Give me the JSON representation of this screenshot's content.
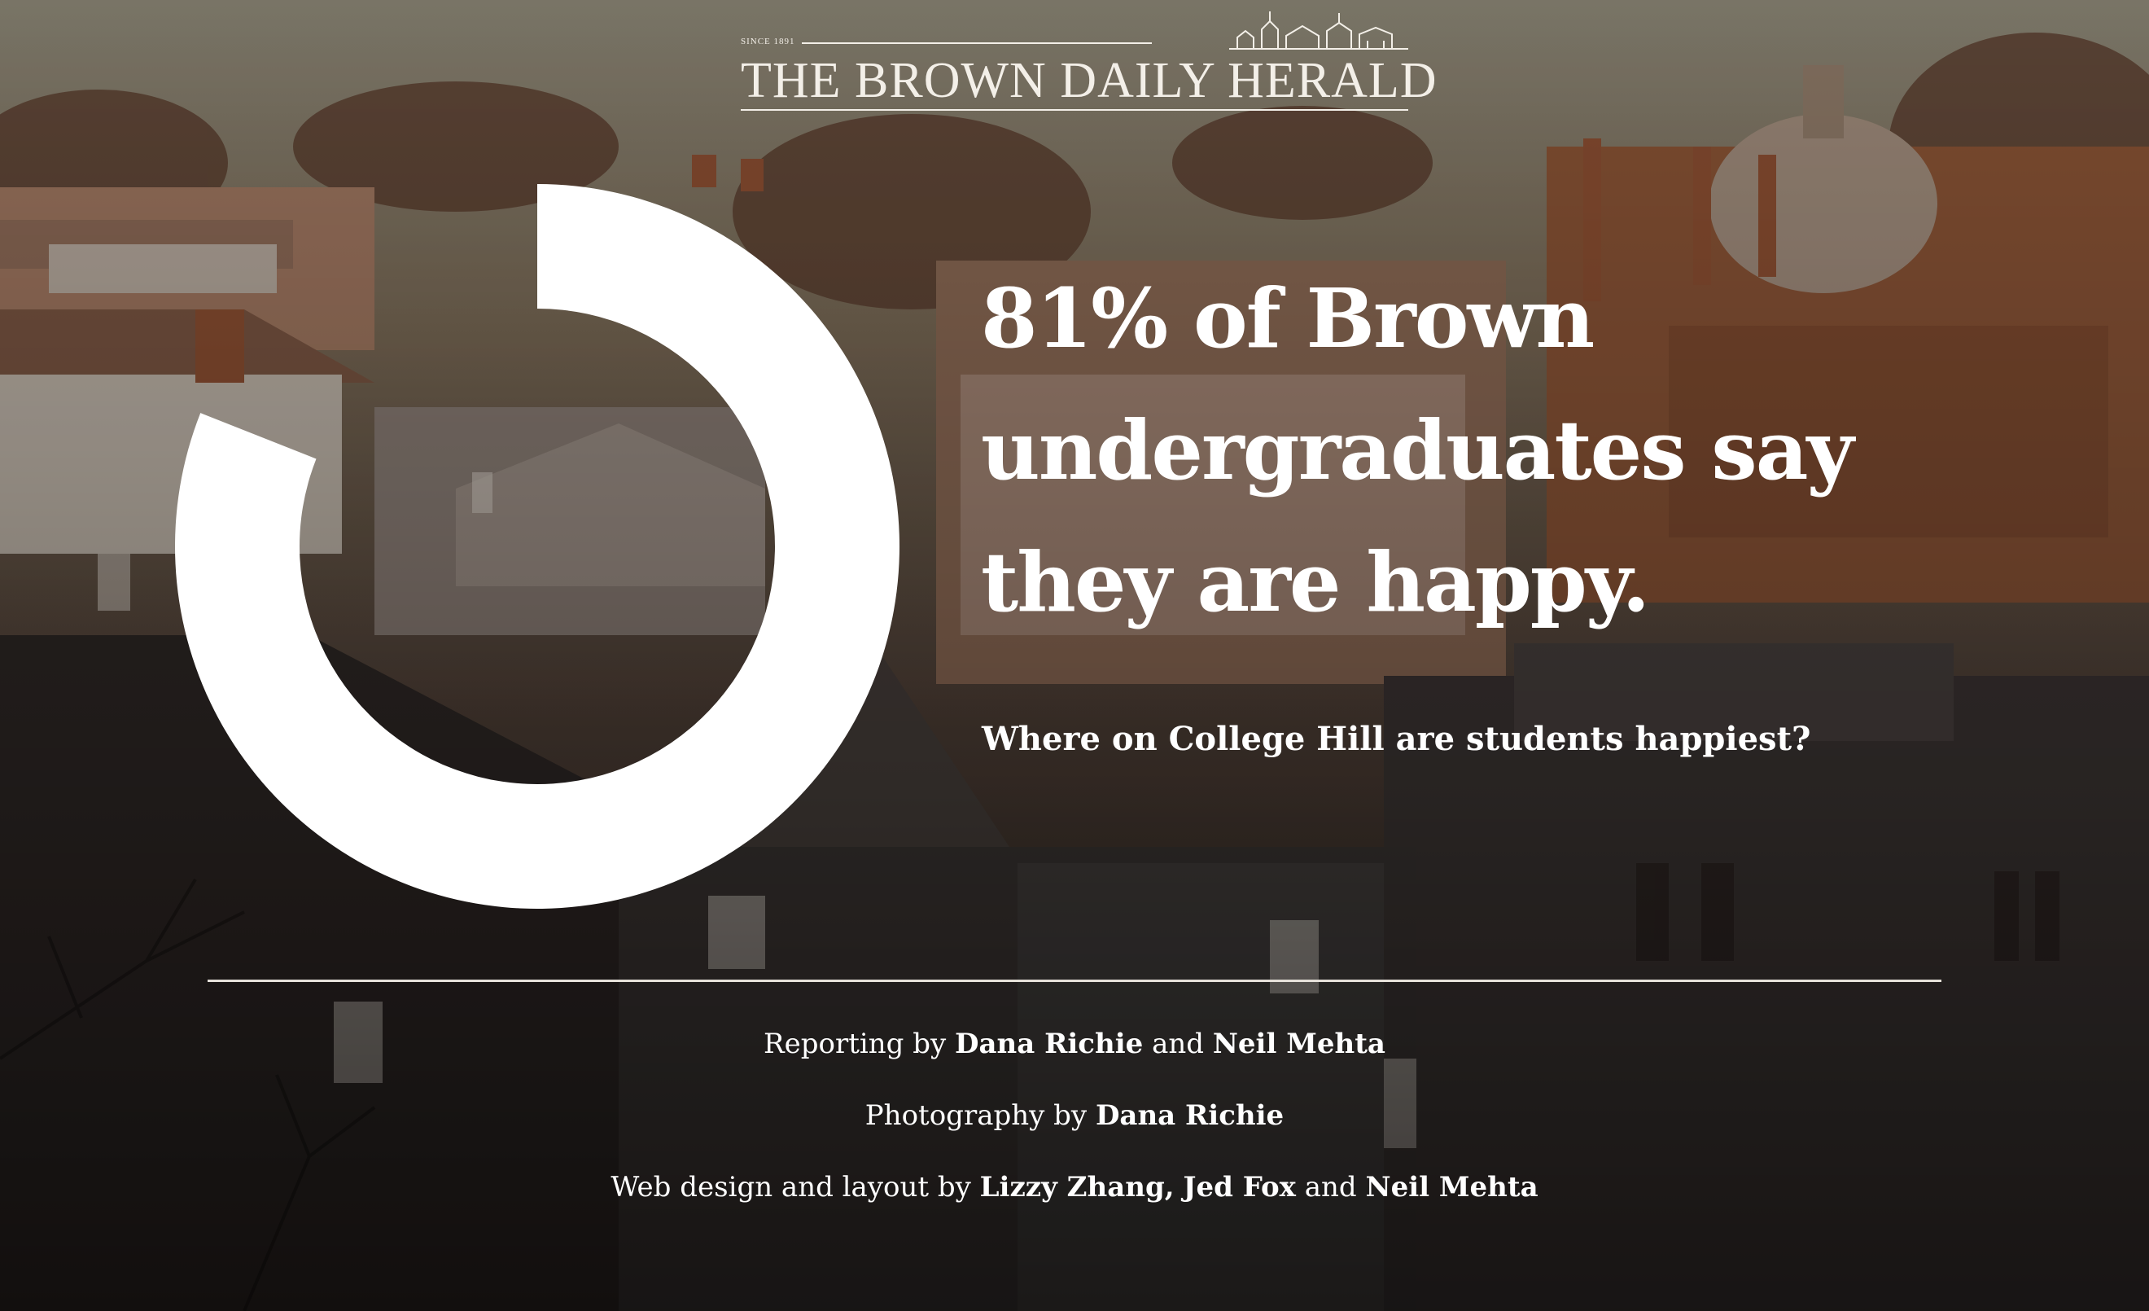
{
  "masthead": {
    "since": "SINCE 1891",
    "title": "THE BROWN DAILY HERALD",
    "logo_icon": "college-hill-skyline-icon"
  },
  "stat": {
    "percent": 81,
    "ring_color": "#ffffff"
  },
  "headline": {
    "line1": "81% of Brown",
    "line2": "undergraduates say",
    "line3": "they are happy."
  },
  "subheadline": "Where on College Hill are students happiest?",
  "credits": {
    "reporting": {
      "prefix": "Reporting by",
      "name1": "Dana Richie",
      "joiner": "and",
      "name2": "Neil Mehta"
    },
    "photography": {
      "prefix": "Photography by",
      "name1": "Dana Richie"
    },
    "web": {
      "prefix": "Web design and layout by",
      "name1": "Lizzy Zhang,",
      "name2": "Jed Fox",
      "joiner": "and",
      "name3": "Neil Mehta"
    }
  },
  "colors": {
    "text": "#ffffff",
    "sky": "#8a8473",
    "brick": "#8a5436",
    "shadow": "#2a2420"
  }
}
